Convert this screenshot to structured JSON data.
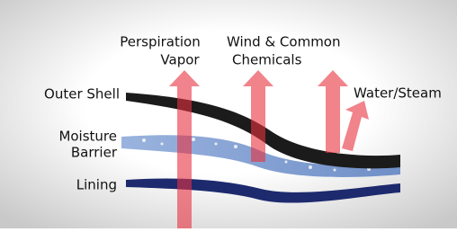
{
  "labels": {
    "perspiration": [
      "Perspiration",
      "Vapor"
    ],
    "wind": [
      "Wind & Common",
      "Chemicals"
    ],
    "water": [
      "Water/Steam"
    ],
    "outer_shell": [
      "Outer Shell"
    ],
    "moisture_barrier": [
      "Moisture",
      "Barrier"
    ],
    "lining": [
      "Lining"
    ]
  }
}
